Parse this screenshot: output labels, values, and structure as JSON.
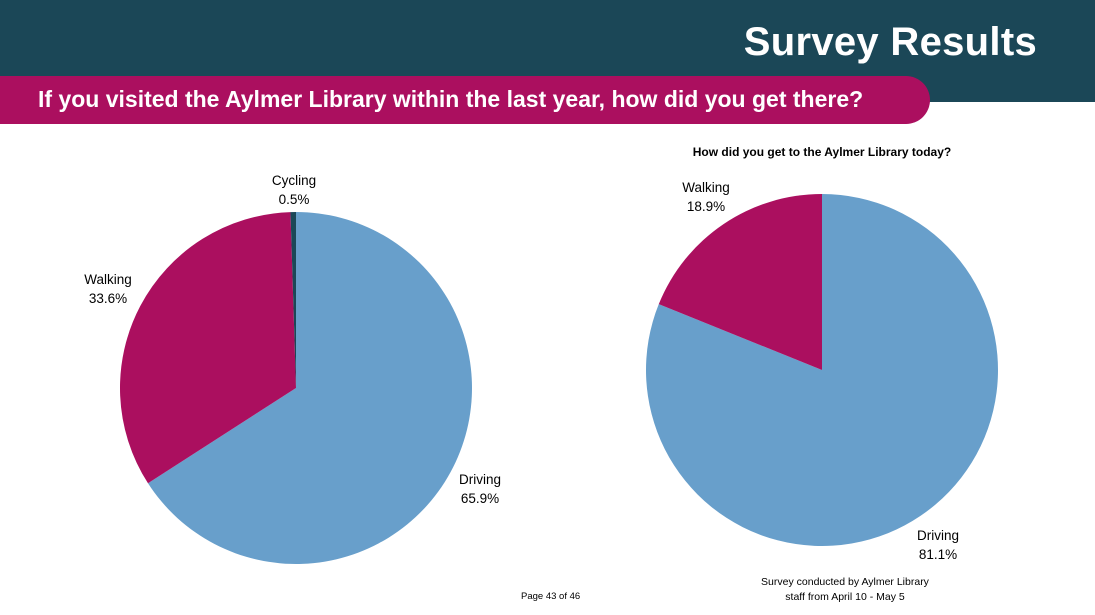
{
  "slide": {
    "title": "Survey Results",
    "question": "If you visited the Aylmer Library within the last year, how did you get there?",
    "page_number": "Page 43 of 46",
    "footnote_line1": "Survey conducted by Aylmer Library",
    "footnote_line2": "staff from April 10 - May 5"
  },
  "colors": {
    "header": "#1b4757",
    "accent": "#ab0f5f",
    "driving": "#689fcb",
    "walking": "#ab0f5f",
    "cycling": "#1b4757"
  },
  "chart_data": [
    {
      "type": "pie",
      "title": "",
      "slices": [
        {
          "label": "Driving",
          "value": 65.9,
          "display": "65.9%",
          "color": "#689fcb"
        },
        {
          "label": "Walking",
          "value": 33.6,
          "display": "33.6%",
          "color": "#ab0f5f"
        },
        {
          "label": "Cycling",
          "value": 0.5,
          "display": "0.5%",
          "color": "#1b4757"
        }
      ]
    },
    {
      "type": "pie",
      "title": "How did you get to the Aylmer Library today?",
      "slices": [
        {
          "label": "Driving",
          "value": 81.1,
          "display": "81.1%",
          "color": "#689fcb"
        },
        {
          "label": "Walking",
          "value": 18.9,
          "display": "18.9%",
          "color": "#ab0f5f"
        }
      ]
    }
  ]
}
